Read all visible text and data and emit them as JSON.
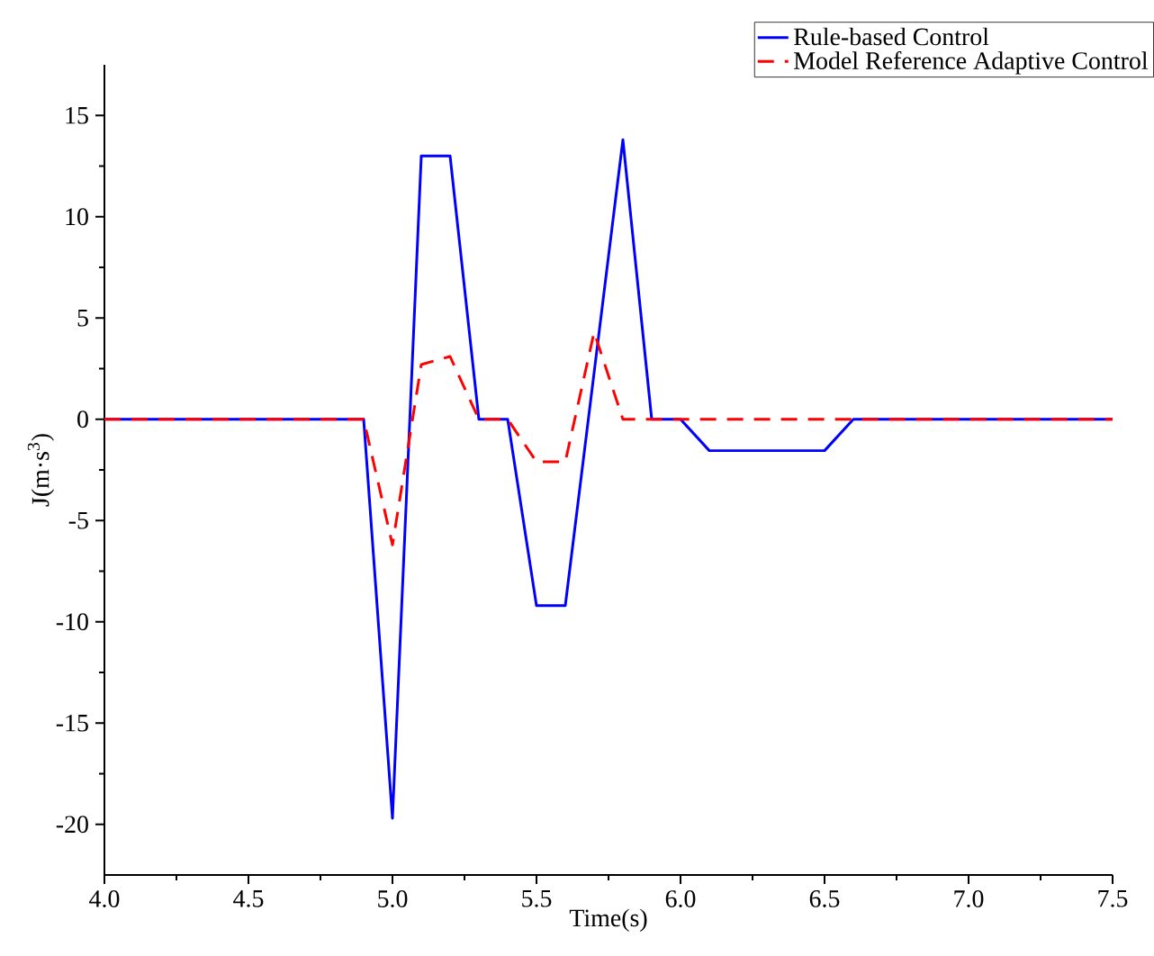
{
  "chart_data": {
    "type": "line",
    "xlabel": "Time(s)",
    "ylabel": "J(m·s$^{3}$)",
    "xlim": [
      4.0,
      7.5
    ],
    "ylim": [
      -22.5,
      17.5
    ],
    "xticks": [
      {
        "value": 4.0,
        "label": "4.0"
      },
      {
        "value": 4.5,
        "label": "4.5"
      },
      {
        "value": 5.0,
        "label": "5.0"
      },
      {
        "value": 5.5,
        "label": "5.5"
      },
      {
        "value": 6.0,
        "label": "6.0"
      },
      {
        "value": 6.5,
        "label": "6.5"
      },
      {
        "value": 7.0,
        "label": "7.0"
      },
      {
        "value": 7.5,
        "label": "7.5"
      }
    ],
    "yticks": [
      -20,
      -15,
      -10,
      -5,
      0,
      5,
      10,
      15
    ],
    "legend": "top right",
    "grid": false,
    "marker": "none",
    "series": [
      {
        "name": "Rule-based Control",
        "color": "#0000ff",
        "line_style": "solid",
        "x": [
          4.0,
          4.9,
          5.0,
          5.1,
          5.2,
          5.3,
          5.4,
          5.5,
          5.6,
          5.8,
          5.9,
          6.0,
          6.1,
          6.5,
          6.6,
          7.5
        ],
        "values": [
          0,
          0,
          -19.7,
          13.0,
          13.0,
          0,
          0,
          -9.2,
          -9.2,
          13.8,
          0,
          0,
          -1.55,
          -1.55,
          0,
          0
        ]
      },
      {
        "name": "Model Reference Adaptive Control",
        "color": "#ff0000",
        "line_style": "dashed",
        "x": [
          4.0,
          4.9,
          5.0,
          5.1,
          5.2,
          5.3,
          5.4,
          5.5,
          5.6,
          5.7,
          5.8,
          7.5
        ],
        "values": [
          0,
          0,
          -6.2,
          2.7,
          3.1,
          0,
          0,
          -2.1,
          -2.1,
          4.3,
          0,
          0
        ]
      }
    ]
  }
}
